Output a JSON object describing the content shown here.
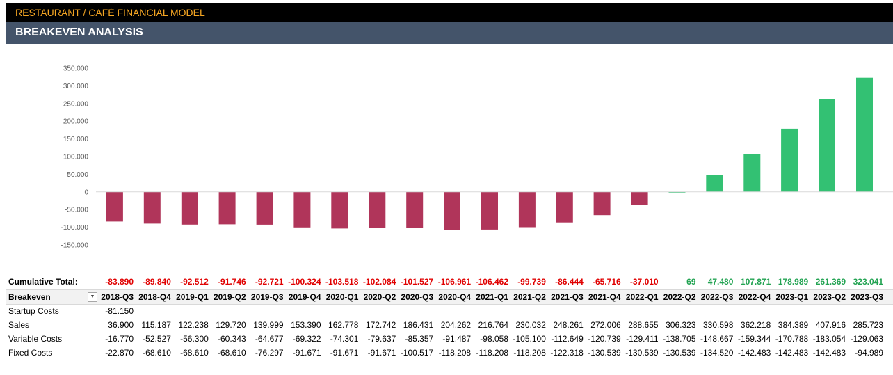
{
  "header": {
    "title": "RESTAURANT / CAFÉ FINANCIAL MODEL",
    "subtitle": "BREAKEVEN ANALYSIS"
  },
  "colors": {
    "negative": "#b0355a",
    "positive": "#33c173",
    "neg_text": "#e00000",
    "pos_text": "#22a352"
  },
  "chart_data": {
    "type": "bar",
    "title": "",
    "xlabel": "",
    "ylabel": "",
    "ylim": [
      -150000,
      350000
    ],
    "yticks": [
      350000,
      300000,
      250000,
      200000,
      150000,
      100000,
      50000,
      0,
      -50000,
      -100000,
      -150000
    ],
    "ytick_labels": [
      "350.000",
      "300.000",
      "250.000",
      "200.000",
      "150.000",
      "100.000",
      "50.000",
      "0",
      "-50.000",
      "-100.000",
      "-150.000"
    ],
    "categories": [
      "2018-Q3",
      "2018-Q4",
      "2019-Q1",
      "2019-Q2",
      "2019-Q3",
      "2019-Q4",
      "2020-Q1",
      "2020-Q2",
      "2020-Q3",
      "2020-Q4",
      "2021-Q1",
      "2021-Q2",
      "2021-Q3",
      "2021-Q4",
      "2022-Q1",
      "2022-Q2",
      "2022-Q3",
      "2022-Q4",
      "2023-Q1",
      "2023-Q2",
      "2023-Q3"
    ],
    "values": [
      -83890,
      -89840,
      -92512,
      -91746,
      -92721,
      -100324,
      -103518,
      -102084,
      -101527,
      -106961,
      -106462,
      -99739,
      -86444,
      -65716,
      -37010,
      69,
      47480,
      107871,
      178989,
      261369,
      323041
    ],
    "grid": false,
    "legend": "none"
  },
  "table": {
    "cumulative_label": "Cumulative Total:",
    "cumulative": [
      "-83.890",
      "-89.840",
      "-92.512",
      "-91.746",
      "-92.721",
      "-100.324",
      "-103.518",
      "-102.084",
      "-101.527",
      "-106.961",
      "-106.462",
      "-99.739",
      "-86.444",
      "-65.716",
      "-37.010",
      "69",
      "47.480",
      "107.871",
      "178.989",
      "261.369",
      "323.041"
    ],
    "header_label": "Breakeven",
    "periods": [
      "2018-Q3",
      "2018-Q4",
      "2019-Q1",
      "2019-Q2",
      "2019-Q3",
      "2019-Q4",
      "2020-Q1",
      "2020-Q2",
      "2020-Q3",
      "2020-Q4",
      "2021-Q1",
      "2021-Q2",
      "2021-Q3",
      "2021-Q4",
      "2022-Q1",
      "2022-Q2",
      "2022-Q3",
      "2022-Q4",
      "2023-Q1",
      "2023-Q2",
      "2023-Q3"
    ],
    "rows": [
      {
        "label": "Startup Costs",
        "values": [
          "-81.150",
          "",
          "",
          "",
          "",
          "",
          "",
          "",
          "",
          "",
          "",
          "",
          "",
          "",
          "",
          "",
          "",
          "",
          "",
          "",
          ""
        ]
      },
      {
        "label": "Sales",
        "values": [
          "36.900",
          "115.187",
          "122.238",
          "129.720",
          "139.999",
          "153.390",
          "162.778",
          "172.742",
          "186.431",
          "204.262",
          "216.764",
          "230.032",
          "248.261",
          "272.006",
          "288.655",
          "306.323",
          "330.598",
          "362.218",
          "384.389",
          "407.916",
          "285.723"
        ]
      },
      {
        "label": "Variable Costs",
        "values": [
          "-16.770",
          "-52.527",
          "-56.300",
          "-60.343",
          "-64.677",
          "-69.322",
          "-74.301",
          "-79.637",
          "-85.357",
          "-91.487",
          "-98.058",
          "-105.100",
          "-112.649",
          "-120.739",
          "-129.411",
          "-138.705",
          "-148.667",
          "-159.344",
          "-170.788",
          "-183.054",
          "-129.063"
        ]
      },
      {
        "label": "Fixed Costs",
        "values": [
          "-22.870",
          "-68.610",
          "-68.610",
          "-68.610",
          "-76.297",
          "-91.671",
          "-91.671",
          "-91.671",
          "-100.517",
          "-118.208",
          "-118.208",
          "-118.208",
          "-122.318",
          "-130.539",
          "-130.539",
          "-130.539",
          "-134.520",
          "-142.483",
          "-142.483",
          "-142.483",
          "-94.989"
        ]
      }
    ]
  }
}
